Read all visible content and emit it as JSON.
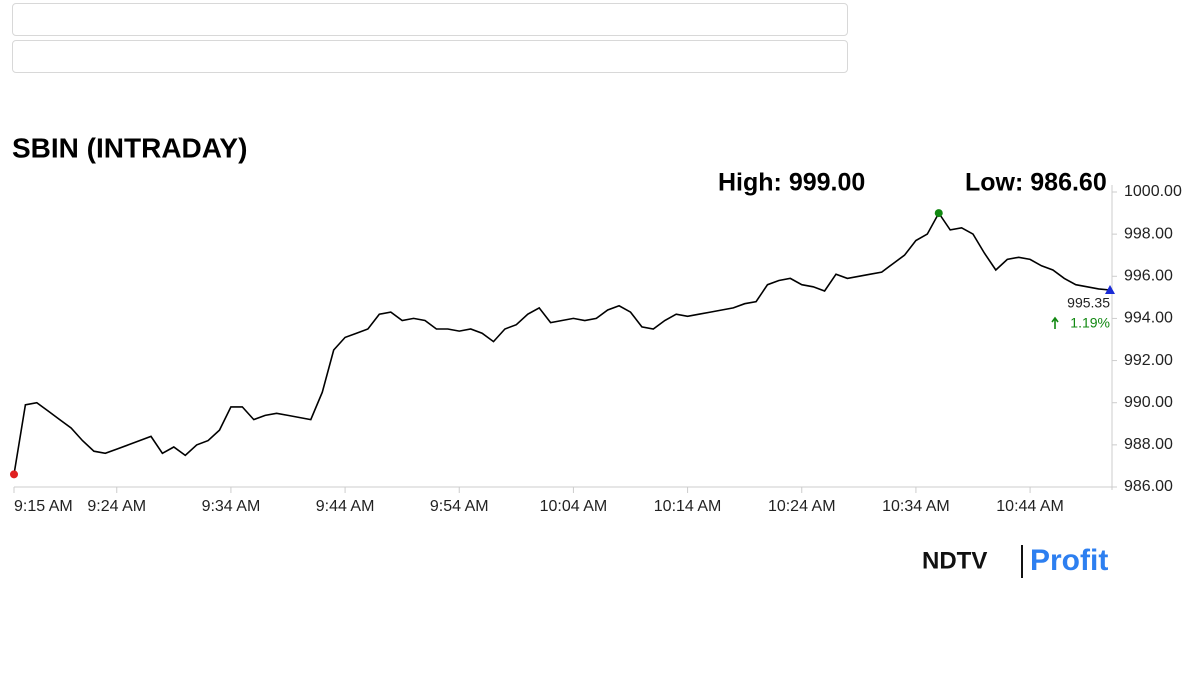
{
  "chart_data": {
    "type": "line",
    "title": "SBIN (INTRADAY)",
    "annotations": [
      "High: 999.00",
      "Low: 986.60"
    ],
    "x": [
      "9:15 AM",
      "9:16 AM",
      "9:17 AM",
      "9:18 AM",
      "9:19 AM",
      "9:20 AM",
      "9:21 AM",
      "9:22 AM",
      "9:23 AM",
      "9:24 AM",
      "9:25 AM",
      "9:26 AM",
      "9:27 AM",
      "9:28 AM",
      "9:29 AM",
      "9:30 AM",
      "9:31 AM",
      "9:32 AM",
      "9:33 AM",
      "9:34 AM",
      "9:35 AM",
      "9:36 AM",
      "9:37 AM",
      "9:38 AM",
      "9:39 AM",
      "9:40 AM",
      "9:41 AM",
      "9:42 AM",
      "9:43 AM",
      "9:44 AM",
      "9:45 AM",
      "9:46 AM",
      "9:47 AM",
      "9:48 AM",
      "9:49 AM",
      "9:50 AM",
      "9:51 AM",
      "9:52 AM",
      "9:53 AM",
      "9:54 AM",
      "9:55 AM",
      "9:56 AM",
      "9:57 AM",
      "9:58 AM",
      "9:59 AM",
      "10:00 AM",
      "10:01 AM",
      "10:02 AM",
      "10:03 AM",
      "10:04 AM",
      "10:05 AM",
      "10:06 AM",
      "10:07 AM",
      "10:08 AM",
      "10:09 AM",
      "10:10 AM",
      "10:11 AM",
      "10:12 AM",
      "10:13 AM",
      "10:14 AM",
      "10:15 AM",
      "10:16 AM",
      "10:17 AM",
      "10:18 AM",
      "10:19 AM",
      "10:20 AM",
      "10:21 AM",
      "10:22 AM",
      "10:23 AM",
      "10:24 AM",
      "10:25 AM",
      "10:26 AM",
      "10:27 AM",
      "10:28 AM",
      "10:29 AM",
      "10:30 AM",
      "10:31 AM",
      "10:32 AM",
      "10:33 AM",
      "10:34 AM",
      "10:35 AM",
      "10:36 AM",
      "10:37 AM",
      "10:38 AM",
      "10:39 AM",
      "10:40 AM",
      "10:41 AM",
      "10:42 AM",
      "10:43 AM",
      "10:44 AM",
      "10:45 AM",
      "10:46 AM",
      "10:47 AM",
      "10:48 AM",
      "10:49 AM",
      "10:50 AM",
      "10:51 AM"
    ],
    "values": [
      986.6,
      989.9,
      990.0,
      989.6,
      989.2,
      988.8,
      988.2,
      987.7,
      987.6,
      987.8,
      988.0,
      988.2,
      988.4,
      987.6,
      987.9,
      987.5,
      988.0,
      988.2,
      988.7,
      989.8,
      989.8,
      989.2,
      989.4,
      989.5,
      989.4,
      989.3,
      989.2,
      990.5,
      992.5,
      993.1,
      993.3,
      993.5,
      994.2,
      994.3,
      993.9,
      994.0,
      993.9,
      993.5,
      993.5,
      993.4,
      993.5,
      993.3,
      992.9,
      993.5,
      993.7,
      994.2,
      994.5,
      993.8,
      993.9,
      994.0,
      993.9,
      994.0,
      994.4,
      994.6,
      994.3,
      993.6,
      993.5,
      993.9,
      994.2,
      994.1,
      994.2,
      994.3,
      994.4,
      994.5,
      994.7,
      994.8,
      995.6,
      995.8,
      995.9,
      995.6,
      995.5,
      995.3,
      996.1,
      995.9,
      996.0,
      996.1,
      996.2,
      996.6,
      997.0,
      997.7,
      998.0,
      999.0,
      998.2,
      998.3,
      998.0,
      997.1,
      996.3,
      996.8,
      996.9,
      996.8,
      996.5,
      996.3,
      995.9,
      995.6,
      995.5,
      995.4,
      995.35
    ],
    "color": "#000000",
    "last_label": "995.35",
    "change_label": "1.19%",
    "ylim": [
      986,
      1000
    ],
    "yticks": [
      {
        "value": 986,
        "label": "986.00"
      },
      {
        "value": 988,
        "label": "988.00"
      },
      {
        "value": 990,
        "label": "990.00"
      },
      {
        "value": 992,
        "label": "992.00"
      },
      {
        "value": 994,
        "label": "994.00"
      },
      {
        "value": 996,
        "label": "996.00"
      },
      {
        "value": 998,
        "label": "998.00"
      },
      {
        "value": 1000,
        "label": "1000.00"
      }
    ],
    "xticks": [
      "9:15 AM",
      "9:24 AM",
      "9:34 AM",
      "9:44 AM",
      "9:54 AM",
      "10:04 AM",
      "10:14 AM",
      "10:24 AM",
      "10:34 AM",
      "10:44 AM"
    ]
  },
  "brand": [
    "NDTV",
    "Profit"
  ]
}
